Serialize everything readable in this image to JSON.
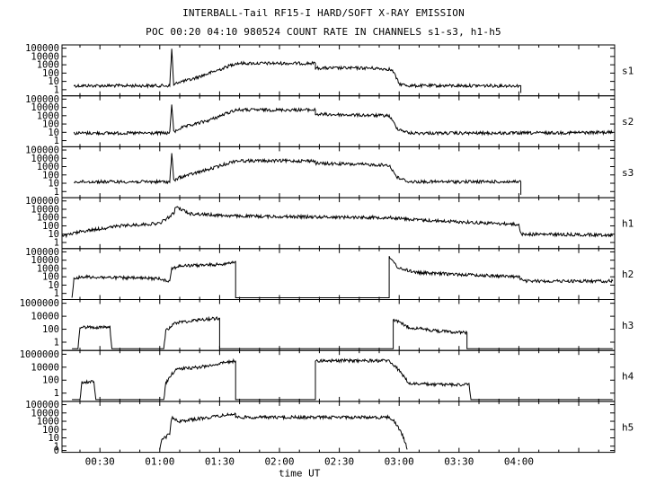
{
  "chart_data": {
    "type": "line",
    "title": "INTERBALL-Tail RF15-I HARD/SOFT X-RAY EMISSION",
    "subtitle": "POC 00:20 04:10 980524  COUNT RATE IN CHANNELS s1-s3, h1-h5",
    "xlabel": "time UT",
    "x_unit": "minutes UT",
    "xlim": [
      "00:11",
      "04:48"
    ],
    "x_ticks": [
      "00:30",
      "01:00",
      "01:30",
      "02:00",
      "02:30",
      "03:00",
      "03:30",
      "04:00"
    ],
    "y_scale": "log",
    "grid": false,
    "panels": [
      {
        "name": "s1",
        "y_ticks": [
          "100000",
          "10000",
          "1000",
          "100",
          "10",
          "1"
        ],
        "ylim": [
          0.3,
          150000
        ],
        "series": [
          {
            "name": "s1",
            "x": [
              "00:17",
              "00:30",
              "00:50",
              "01:05",
              "01:06",
              "01:07",
              "01:09",
              "01:15",
              "01:25",
              "01:32",
              "01:38",
              "01:50",
              "02:10",
              "02:18",
              "02:18",
              "02:45",
              "02:55",
              "02:57",
              "03:00",
              "03:05",
              "03:30",
              "04:01",
              "04:01"
            ],
            "y": [
              3,
              3,
              3,
              3,
              80000,
              3,
              8,
              15,
              100,
              400,
              1500,
              1500,
              1500,
              1500,
              400,
              400,
              300,
              150,
              5,
              3,
              3,
              3,
              0.4
            ]
          }
        ]
      },
      {
        "name": "s2",
        "y_ticks": [
          "100000",
          "10000",
          "1000",
          "100",
          "10",
          "1"
        ],
        "ylim": [
          0.3,
          150000
        ],
        "series": [
          {
            "name": "s2",
            "x": [
              "00:17",
              "00:50",
              "01:05",
              "01:06",
              "01:07",
              "01:10",
              "01:25",
              "01:38",
              "02:18",
              "02:18",
              "02:55",
              "02:59",
              "03:05",
              "04:00",
              "04:47"
            ],
            "y": [
              8,
              8,
              8,
              30000,
              10,
              30,
              300,
              5000,
              5000,
              1500,
              1000,
              30,
              8,
              8,
              10
            ]
          }
        ]
      },
      {
        "name": "s3",
        "y_ticks": [
          "100000",
          "10000",
          "1000",
          "100",
          "10",
          "1"
        ],
        "ylim": [
          0.3,
          150000
        ],
        "series": [
          {
            "name": "s3",
            "x": [
              "00:17",
              "00:50",
              "01:05",
              "01:06",
              "01:07",
              "01:10",
              "01:25",
              "01:38",
              "02:18",
              "02:18",
              "02:55",
              "02:59",
              "03:05",
              "04:01",
              "04:01"
            ],
            "y": [
              15,
              15,
              15,
              40000,
              20,
              50,
              500,
              5000,
              5000,
              2500,
              1500,
              50,
              15,
              15,
              0.4
            ]
          }
        ]
      },
      {
        "name": "h1",
        "y_ticks": [
          "100000",
          "10000",
          "1000",
          "100",
          "10",
          "1"
        ],
        "ylim": [
          0.3,
          150000
        ],
        "series": [
          {
            "name": "h1",
            "x": [
              "00:11",
              "00:20",
              "00:40",
              "01:00",
              "01:07",
              "01:08",
              "01:15",
              "01:38",
              "02:18",
              "02:55",
              "03:10",
              "04:00",
              "04:01",
              "04:47"
            ],
            "y": [
              5,
              20,
              100,
              200,
              3000,
              20000,
              3000,
              1500,
              1200,
              1000,
              500,
              150,
              10,
              8
            ]
          }
        ]
      },
      {
        "name": "h2",
        "y_ticks": [
          "100000",
          "10000",
          "1000",
          "100",
          "10",
          "1"
        ],
        "ylim": [
          0.3,
          150000
        ],
        "series": [
          {
            "name": "h2",
            "x": [
              "00:16",
              "00:17",
              "00:20",
              "01:00",
              "01:05",
              "01:06",
              "01:10",
              "01:30",
              "01:38",
              "01:38",
              "02:55",
              "02:55",
              "03:00",
              "03:10",
              "04:00",
              "04:02",
              "04:47"
            ],
            "y": [
              0.3,
              50,
              100,
              60,
              30,
              1000,
              2000,
              3000,
              7000,
              0.3,
              0.3,
              20000,
              1000,
              300,
              100,
              30,
              30
            ]
          }
        ]
      },
      {
        "name": "h3",
        "y_ticks": [
          "1000000",
          "10000",
          "100",
          "1"
        ],
        "ylim": [
          0.1,
          2000000
        ],
        "series": [
          {
            "name": "h3",
            "x": [
              "00:16",
              "00:19",
              "00:20",
              "00:35",
              "00:36",
              "01:02",
              "01:03",
              "01:05",
              "01:08",
              "01:20",
              "01:30",
              "01:30",
              "02:57",
              "02:57",
              "03:05",
              "03:20",
              "03:34",
              "03:34",
              "04:47"
            ],
            "y": [
              0.1,
              0.1,
              200,
              200,
              0.1,
              0.1,
              50,
              200,
              1000,
              3000,
              5000,
              0.1,
              0.1,
              3000,
              200,
              50,
              30,
              0.1,
              0.1
            ]
          }
        ]
      },
      {
        "name": "h4",
        "y_ticks": [
          "1000000",
          "10000",
          "100",
          "1"
        ],
        "ylim": [
          0.1,
          2000000
        ],
        "series": [
          {
            "name": "h4",
            "x": [
              "00:16",
              "00:20",
              "00:21",
              "00:27",
              "00:28",
              "01:02",
              "01:03",
              "01:05",
              "01:08",
              "01:20",
              "01:38",
              "01:38",
              "02:18",
              "02:18",
              "02:55",
              "03:00",
              "03:05",
              "03:20",
              "03:35",
              "03:36",
              "04:47"
            ],
            "y": [
              0.1,
              0.1,
              50,
              50,
              0.1,
              0.1,
              30,
              300,
              5000,
              10000,
              100000,
              0.1,
              0.1,
              100000,
              100000,
              3000,
              30,
              20,
              20,
              0.1,
              0.1
            ]
          }
        ]
      },
      {
        "name": "h5",
        "y_ticks": [
          "100000",
          "10000",
          "1000",
          "100",
          "10",
          "1",
          "0"
        ],
        "ylim": [
          0.3,
          150000
        ],
        "series": [
          {
            "name": "h5",
            "x": [
              "01:00",
              "01:01",
              "01:05",
              "01:06",
              "01:10",
              "01:25",
              "01:38",
              "01:38",
              "02:55",
              "02:57",
              "03:01",
              "03:03",
              "03:04"
            ],
            "y": [
              0.4,
              5,
              30,
              3000,
              1000,
              3000,
              8000,
              3000,
              3000,
              1500,
              50,
              3,
              0.4
            ]
          }
        ]
      }
    ]
  }
}
